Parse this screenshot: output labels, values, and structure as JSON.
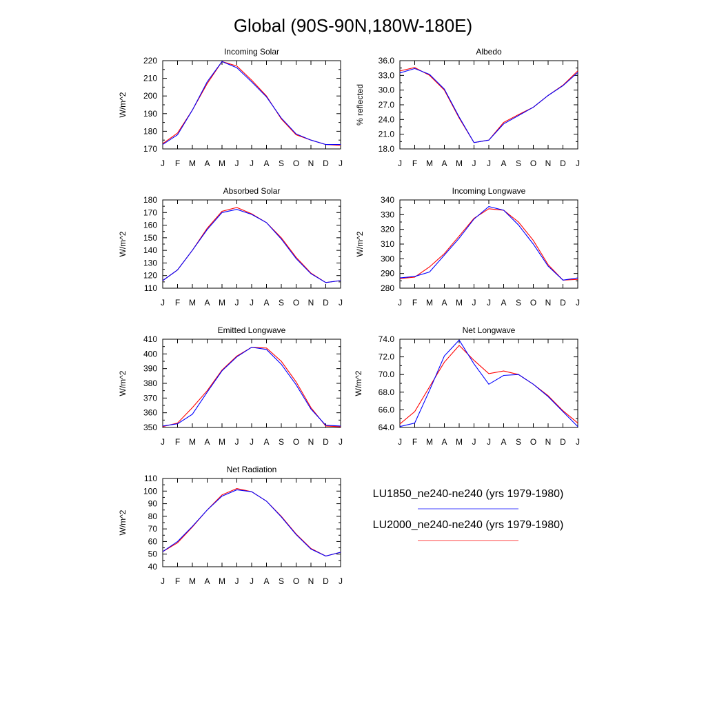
{
  "title": "Global (90S-90N,180W-180E)",
  "legend": [
    {
      "label": "LU1850_ne240-ne240 (yrs 1979-1980)",
      "color": "#0000ff"
    },
    {
      "label": "LU2000_ne240-ne240 (yrs 1979-1980)",
      "color": "#ff0000"
    }
  ],
  "chart_data": [
    {
      "type": "line",
      "title": "Incoming Solar",
      "ylabel": "W/m^2",
      "xlabel": "",
      "categories": [
        "J",
        "F",
        "M",
        "A",
        "M",
        "J",
        "J",
        "A",
        "S",
        "O",
        "N",
        "D",
        "J"
      ],
      "ylim": [
        170,
        220
      ],
      "yticks": [
        170,
        180,
        190,
        200,
        210,
        220
      ],
      "ytick_labels": [
        "170",
        "180",
        "190",
        "200",
        "210",
        "220"
      ],
      "grid": false,
      "series": [
        {
          "name": "LU1850_ne240-ne240 (yrs 1979-1980)",
          "color": "#0000ff",
          "values": [
            172.5,
            178.0,
            192.0,
            208.0,
            219.5,
            216.0,
            208.0,
            199.5,
            187.5,
            178.5,
            175.0,
            172.5,
            172.5
          ]
        },
        {
          "name": "LU2000_ne240-ne240 (yrs 1979-1980)",
          "color": "#ff0000",
          "values": [
            173.0,
            179.0,
            192.0,
            207.0,
            219.5,
            217.0,
            209.0,
            200.0,
            187.0,
            178.0,
            175.0,
            172.5,
            172.0
          ]
        }
      ]
    },
    {
      "type": "line",
      "title": "Albedo",
      "ylabel": "% reflected",
      "xlabel": "",
      "categories": [
        "J",
        "F",
        "M",
        "A",
        "M",
        "J",
        "J",
        "A",
        "S",
        "O",
        "N",
        "D",
        "J"
      ],
      "ylim": [
        18.0,
        36.0
      ],
      "yticks": [
        18.0,
        21.0,
        24.0,
        27.0,
        30.0,
        33.0,
        36.0
      ],
      "ytick_labels": [
        "18.0",
        "21.0",
        "24.0",
        "27.0",
        "30.0",
        "33.0",
        "36.0"
      ],
      "grid": false,
      "series": [
        {
          "name": "LU1850_ne240-ne240 (yrs 1979-1980)",
          "color": "#0000ff",
          "values": [
            33.5,
            34.4,
            33.2,
            30.2,
            24.5,
            19.3,
            19.8,
            23.1,
            24.8,
            26.5,
            28.9,
            30.9,
            33.6
          ]
        },
        {
          "name": "LU2000_ne240-ne240 (yrs 1979-1980)",
          "color": "#ff0000",
          "values": [
            33.9,
            34.6,
            33.0,
            30.0,
            24.3,
            19.3,
            19.8,
            23.4,
            25.0,
            26.5,
            28.9,
            31.0,
            33.9
          ]
        }
      ]
    },
    {
      "type": "line",
      "title": "Absorbed Solar",
      "ylabel": "W/m^2",
      "xlabel": "",
      "categories": [
        "J",
        "F",
        "M",
        "A",
        "M",
        "J",
        "J",
        "A",
        "S",
        "O",
        "N",
        "D",
        "J"
      ],
      "ylim": [
        110,
        180
      ],
      "yticks": [
        110,
        120,
        130,
        140,
        150,
        160,
        170,
        180
      ],
      "ytick_labels": [
        "110",
        "120",
        "130",
        "140",
        "150",
        "160",
        "170",
        "180"
      ],
      "grid": false,
      "series": [
        {
          "name": "LU1850_ne240-ne240 (yrs 1979-1980)",
          "color": "#0000ff",
          "values": [
            116.0,
            124.5,
            140.0,
            156.5,
            170.0,
            172.5,
            168.5,
            162.0,
            149.0,
            133.5,
            121.5,
            114.5,
            116.0
          ]
        },
        {
          "name": "LU2000_ne240-ne240 (yrs 1979-1980)",
          "color": "#ff0000",
          "values": [
            116.0,
            124.5,
            140.0,
            157.5,
            171.0,
            174.0,
            169.0,
            162.0,
            150.0,
            134.5,
            122.0,
            114.5,
            116.0
          ]
        }
      ]
    },
    {
      "type": "line",
      "title": "Incoming Longwave",
      "ylabel": "W/m^2",
      "xlabel": "",
      "categories": [
        "J",
        "F",
        "M",
        "A",
        "M",
        "J",
        "J",
        "A",
        "S",
        "O",
        "N",
        "D",
        "J"
      ],
      "ylim": [
        280,
        340
      ],
      "yticks": [
        280,
        290,
        300,
        310,
        320,
        330,
        340
      ],
      "ytick_labels": [
        "280",
        "290",
        "300",
        "310",
        "320",
        "330",
        "340"
      ],
      "grid": false,
      "series": [
        {
          "name": "LU1850_ne240-ne240 (yrs 1979-1980)",
          "color": "#0000ff",
          "values": [
            287.0,
            288.0,
            291.0,
            302.5,
            314.0,
            327.0,
            335.5,
            333.0,
            323.0,
            310.0,
            295.0,
            285.5,
            287.0
          ]
        },
        {
          "name": "LU2000_ne240-ne240 (yrs 1979-1980)",
          "color": "#ff0000",
          "values": [
            286.5,
            287.5,
            294.5,
            303.5,
            315.5,
            327.5,
            334.0,
            333.0,
            325.0,
            312.5,
            296.0,
            285.5,
            286.0
          ]
        }
      ]
    },
    {
      "type": "line",
      "title": "Emitted Longwave",
      "ylabel": "W/m^2",
      "xlabel": "",
      "categories": [
        "J",
        "F",
        "M",
        "A",
        "M",
        "J",
        "J",
        "A",
        "S",
        "O",
        "N",
        "D",
        "J"
      ],
      "ylim": [
        350,
        410
      ],
      "yticks": [
        350,
        360,
        370,
        380,
        390,
        400,
        410
      ],
      "ytick_labels": [
        "350",
        "360",
        "370",
        "380",
        "390",
        "400",
        "410"
      ],
      "grid": false,
      "series": [
        {
          "name": "LU1850_ne240-ne240 (yrs 1979-1980)",
          "color": "#0000ff",
          "values": [
            351.0,
            352.5,
            359.0,
            374.0,
            388.5,
            398.0,
            404.5,
            403.0,
            393.0,
            379.0,
            362.5,
            351.5,
            351.0
          ]
        },
        {
          "name": "LU2000_ne240-ne240 (yrs 1979-1980)",
          "color": "#ff0000",
          "values": [
            350.5,
            353.0,
            363.5,
            375.0,
            389.0,
            398.5,
            404.5,
            404.0,
            395.0,
            381.0,
            363.5,
            351.0,
            350.5
          ]
        }
      ]
    },
    {
      "type": "line",
      "title": "Net Longwave",
      "ylabel": "W/m^2",
      "xlabel": "",
      "categories": [
        "J",
        "F",
        "M",
        "A",
        "M",
        "J",
        "J",
        "A",
        "S",
        "O",
        "N",
        "D",
        "J"
      ],
      "ylim": [
        64.0,
        74.0
      ],
      "yticks": [
        64.0,
        66.0,
        68.0,
        70.0,
        72.0,
        74.0
      ],
      "ytick_labels": [
        "64.0",
        "66.0",
        "68.0",
        "70.0",
        "72.0",
        "74.0"
      ],
      "grid": false,
      "series": [
        {
          "name": "LU1850_ne240-ne240 (yrs 1979-1980)",
          "color": "#0000ff",
          "values": [
            64.1,
            64.5,
            68.2,
            72.1,
            73.9,
            71.2,
            68.9,
            69.9,
            70.0,
            68.9,
            67.5,
            65.8,
            64.1
          ]
        },
        {
          "name": "LU2000_ne240-ne240 (yrs 1979-1980)",
          "color": "#ff0000",
          "values": [
            64.4,
            65.8,
            68.6,
            71.4,
            73.3,
            71.6,
            70.1,
            70.4,
            70.0,
            68.9,
            67.6,
            65.9,
            64.5
          ]
        }
      ]
    },
    {
      "type": "line",
      "title": "Net Radiation",
      "ylabel": "W/m^2",
      "xlabel": "",
      "categories": [
        "J",
        "F",
        "M",
        "A",
        "M",
        "J",
        "J",
        "A",
        "S",
        "O",
        "N",
        "D",
        "J"
      ],
      "ylim": [
        40,
        110
      ],
      "yticks": [
        40,
        50,
        60,
        70,
        80,
        90,
        100,
        110
      ],
      "ytick_labels": [
        "40",
        "50",
        "60",
        "70",
        "80",
        "90",
        "100",
        "110"
      ],
      "grid": false,
      "series": [
        {
          "name": "LU1850_ne240-ne240 (yrs 1979-1980)",
          "color": "#0000ff",
          "values": [
            52.0,
            60.0,
            72.0,
            85.0,
            96.0,
            101.0,
            99.5,
            92.0,
            79.5,
            65.5,
            54.0,
            48.5,
            51.5
          ]
        },
        {
          "name": "LU2000_ne240-ne240 (yrs 1979-1980)",
          "color": "#ff0000",
          "values": [
            52.0,
            59.0,
            71.5,
            85.0,
            97.0,
            102.0,
            99.5,
            92.0,
            80.0,
            66.0,
            54.5,
            48.5,
            51.5
          ]
        }
      ]
    }
  ]
}
